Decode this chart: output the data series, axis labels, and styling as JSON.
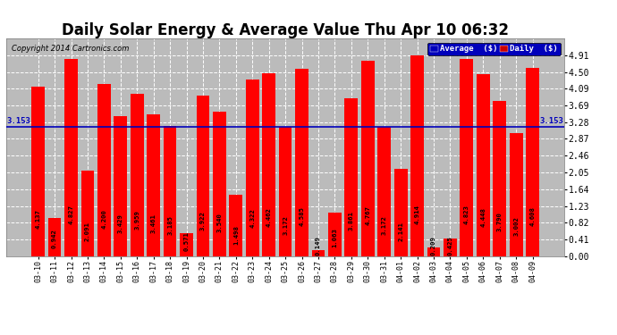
{
  "title": "Daily Solar Energy & Average Value Thu Apr 10 06:32",
  "copyright": "Copyright 2014 Cartronics.com",
  "categories": [
    "03-10",
    "03-11",
    "03-12",
    "03-13",
    "03-14",
    "03-15",
    "03-16",
    "03-17",
    "03-18",
    "03-19",
    "03-20",
    "03-21",
    "03-22",
    "03-23",
    "03-24",
    "03-25",
    "03-26",
    "03-27",
    "03-28",
    "03-29",
    "03-30",
    "03-31",
    "04-01",
    "04-02",
    "04-03",
    "04-04",
    "04-05",
    "04-06",
    "04-07",
    "04-08",
    "04-09"
  ],
  "values": [
    4.137,
    0.942,
    4.827,
    2.091,
    4.2,
    3.429,
    3.959,
    3.461,
    3.185,
    0.571,
    3.922,
    3.54,
    1.498,
    4.322,
    4.462,
    3.172,
    4.585,
    0.149,
    1.063,
    3.861,
    4.767,
    3.172,
    2.141,
    4.914,
    0.209,
    0.425,
    4.823,
    4.448,
    3.79,
    3.002,
    4.608
  ],
  "average_value": 3.153,
  "bar_color": "#ff0000",
  "average_color": "#0000bb",
  "yticks": [
    0.0,
    0.41,
    0.82,
    1.23,
    1.64,
    2.05,
    2.46,
    2.87,
    3.28,
    3.69,
    4.09,
    4.5,
    4.91
  ],
  "ylim_max": 5.32,
  "title_fontsize": 12,
  "legend_avg_bg": "#0000bb",
  "legend_daily_bg": "#cc0000",
  "background_color": "#ffffff",
  "grid_color": "#ffffff",
  "plot_bg_color": "#bbbbbb"
}
